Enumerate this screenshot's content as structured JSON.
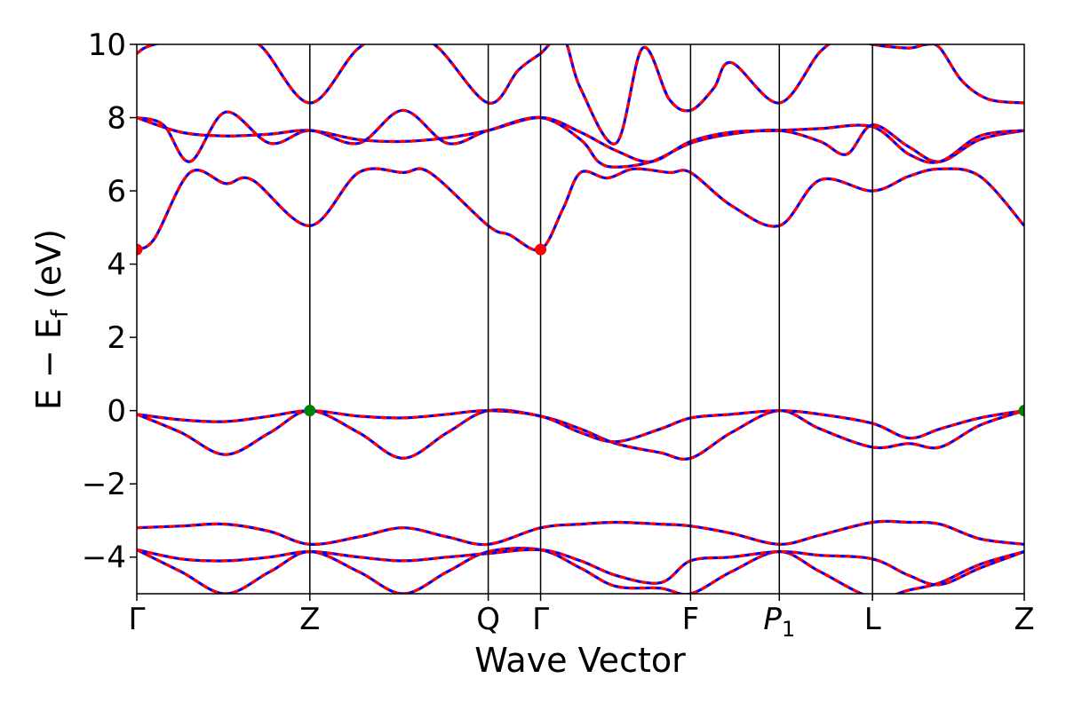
{
  "chart_data": {
    "type": "line",
    "title": "",
    "xlabel": "Wave Vector",
    "ylabel": "E − E",
    "ylabel_subscript": "f",
    "ylabel_unit": " (eV)",
    "ylim": [
      -5,
      10
    ],
    "y_ticks": [
      -4,
      -2,
      0,
      2,
      4,
      6,
      8,
      10
    ],
    "y_tick_labels": [
      "−4",
      "−2",
      "0",
      "2",
      "4",
      "6",
      "8",
      "10"
    ],
    "x_range": [
      0,
      1
    ],
    "high_symmetry_points": [
      {
        "label": "Γ",
        "x": 0.0
      },
      {
        "label": "Z",
        "x": 0.195
      },
      {
        "label": "Q",
        "x": 0.396
      },
      {
        "label": "Γ",
        "x": 0.455
      },
      {
        "label": "F",
        "x": 0.624
      },
      {
        "label": "P",
        "label_sub": "1",
        "x": 0.724
      },
      {
        "label": "L",
        "x": 0.829
      },
      {
        "label": "Z",
        "x": 1.0
      }
    ],
    "series": [
      {
        "color": "#ff0000",
        "style": "solid"
      },
      {
        "color": "#0000ff",
        "style": "dashed"
      }
    ],
    "bands": [
      [
        [
          0,
          -3.8
        ],
        [
          0.05,
          -4.4
        ],
        [
          0.1,
          -5.0
        ],
        [
          0.15,
          -4.4
        ],
        [
          0.195,
          -3.85
        ],
        [
          0.25,
          -4.4
        ],
        [
          0.3,
          -5.0
        ],
        [
          0.35,
          -4.4
        ],
        [
          0.396,
          -3.85
        ],
        [
          0.455,
          -3.8
        ],
        [
          0.5,
          -4.3
        ],
        [
          0.54,
          -4.8
        ],
        [
          0.59,
          -4.85
        ],
        [
          0.624,
          -5.0
        ],
        [
          0.67,
          -4.4
        ],
        [
          0.724,
          -3.85
        ],
        [
          0.77,
          -4.4
        ],
        [
          0.829,
          -5.1
        ],
        [
          0.87,
          -4.9
        ],
        [
          0.905,
          -4.7
        ],
        [
          0.95,
          -4.2
        ],
        [
          1.0,
          -3.85
        ]
      ],
      [
        [
          0,
          -3.8
        ],
        [
          0.05,
          -4.05
        ],
        [
          0.1,
          -4.1
        ],
        [
          0.15,
          -4.0
        ],
        [
          0.195,
          -3.85
        ],
        [
          0.25,
          -4.0
        ],
        [
          0.3,
          -4.1
        ],
        [
          0.35,
          -4.0
        ],
        [
          0.396,
          -3.9
        ],
        [
          0.455,
          -3.8
        ],
        [
          0.5,
          -4.1
        ],
        [
          0.54,
          -4.5
        ],
        [
          0.59,
          -4.7
        ],
        [
          0.624,
          -4.1
        ],
        [
          0.67,
          -4.0
        ],
        [
          0.724,
          -3.85
        ],
        [
          0.77,
          -3.95
        ],
        [
          0.829,
          -4.05
        ],
        [
          0.87,
          -4.5
        ],
        [
          0.905,
          -4.75
        ],
        [
          0.95,
          -4.3
        ],
        [
          1.0,
          -3.85
        ]
      ],
      [
        [
          0,
          -3.2
        ],
        [
          0.05,
          -3.15
        ],
        [
          0.1,
          -3.1
        ],
        [
          0.15,
          -3.3
        ],
        [
          0.195,
          -3.65
        ],
        [
          0.25,
          -3.45
        ],
        [
          0.3,
          -3.2
        ],
        [
          0.35,
          -3.45
        ],
        [
          0.396,
          -3.65
        ],
        [
          0.455,
          -3.2
        ],
        [
          0.5,
          -3.1
        ],
        [
          0.54,
          -3.05
        ],
        [
          0.59,
          -3.1
        ],
        [
          0.624,
          -3.15
        ],
        [
          0.67,
          -3.35
        ],
        [
          0.724,
          -3.65
        ],
        [
          0.77,
          -3.4
        ],
        [
          0.829,
          -3.05
        ],
        [
          0.87,
          -3.05
        ],
        [
          0.905,
          -3.1
        ],
        [
          0.95,
          -3.5
        ],
        [
          1.0,
          -3.65
        ]
      ],
      [
        [
          0,
          -0.1
        ],
        [
          0.05,
          -0.6
        ],
        [
          0.1,
          -1.2
        ],
        [
          0.15,
          -0.6
        ],
        [
          0.195,
          0.0
        ],
        [
          0.25,
          -0.6
        ],
        [
          0.3,
          -1.3
        ],
        [
          0.35,
          -0.6
        ],
        [
          0.396,
          0.0
        ],
        [
          0.455,
          -0.15
        ],
        [
          0.5,
          -0.5
        ],
        [
          0.54,
          -0.9
        ],
        [
          0.59,
          -1.15
        ],
        [
          0.624,
          -1.3
        ],
        [
          0.67,
          -0.6
        ],
        [
          0.724,
          0.0
        ],
        [
          0.77,
          -0.5
        ],
        [
          0.829,
          -1.0
        ],
        [
          0.87,
          -0.9
        ],
        [
          0.905,
          -1.0
        ],
        [
          0.95,
          -0.4
        ],
        [
          1.0,
          0.0
        ]
      ],
      [
        [
          0,
          -0.1
        ],
        [
          0.05,
          -0.25
        ],
        [
          0.1,
          -0.3
        ],
        [
          0.15,
          -0.15
        ],
        [
          0.195,
          0.0
        ],
        [
          0.25,
          -0.15
        ],
        [
          0.3,
          -0.2
        ],
        [
          0.35,
          -0.1
        ],
        [
          0.396,
          0.0
        ],
        [
          0.455,
          -0.15
        ],
        [
          0.5,
          -0.6
        ],
        [
          0.54,
          -0.85
        ],
        [
          0.59,
          -0.5
        ],
        [
          0.624,
          -0.2
        ],
        [
          0.67,
          -0.1
        ],
        [
          0.724,
          0.0
        ],
        [
          0.77,
          -0.1
        ],
        [
          0.829,
          -0.35
        ],
        [
          0.87,
          -0.75
        ],
        [
          0.905,
          -0.5
        ],
        [
          0.95,
          -0.2
        ],
        [
          1.0,
          0.0
        ]
      ],
      [
        [
          0,
          4.4
        ],
        [
          0.02,
          4.7
        ],
        [
          0.06,
          6.5
        ],
        [
          0.1,
          6.2
        ],
        [
          0.13,
          6.3
        ],
        [
          0.195,
          5.05
        ],
        [
          0.25,
          6.5
        ],
        [
          0.3,
          6.5
        ],
        [
          0.33,
          6.5
        ],
        [
          0.396,
          5.05
        ],
        [
          0.42,
          4.8
        ],
        [
          0.455,
          4.4
        ],
        [
          0.48,
          5.5
        ],
        [
          0.5,
          6.5
        ],
        [
          0.53,
          6.35
        ],
        [
          0.56,
          6.6
        ],
        [
          0.6,
          6.5
        ],
        [
          0.624,
          6.5
        ],
        [
          0.67,
          5.6
        ],
        [
          0.724,
          5.05
        ],
        [
          0.77,
          6.3
        ],
        [
          0.829,
          6.0
        ],
        [
          0.87,
          6.4
        ],
        [
          0.905,
          6.6
        ],
        [
          0.95,
          6.4
        ],
        [
          1.0,
          5.05
        ]
      ],
      [
        [
          0,
          8.0
        ],
        [
          0.03,
          7.8
        ],
        [
          0.06,
          6.8
        ],
        [
          0.1,
          8.15
        ],
        [
          0.15,
          7.3
        ],
        [
          0.195,
          7.65
        ],
        [
          0.25,
          7.3
        ],
        [
          0.3,
          8.2
        ],
        [
          0.35,
          7.3
        ],
        [
          0.396,
          7.65
        ],
        [
          0.455,
          8.0
        ],
        [
          0.5,
          7.4
        ],
        [
          0.52,
          6.8
        ],
        [
          0.54,
          6.65
        ],
        [
          0.58,
          6.8
        ],
        [
          0.624,
          7.3
        ],
        [
          0.67,
          7.55
        ],
        [
          0.724,
          7.65
        ],
        [
          0.77,
          7.35
        ],
        [
          0.8,
          7.0
        ],
        [
          0.829,
          7.8
        ],
        [
          0.87,
          7.2
        ],
        [
          0.905,
          6.8
        ],
        [
          0.95,
          7.4
        ],
        [
          1.0,
          7.65
        ]
      ],
      [
        [
          0,
          8.0
        ],
        [
          0.05,
          7.6
        ],
        [
          0.1,
          7.5
        ],
        [
          0.15,
          7.55
        ],
        [
          0.195,
          7.65
        ],
        [
          0.25,
          7.4
        ],
        [
          0.3,
          7.35
        ],
        [
          0.35,
          7.45
        ],
        [
          0.396,
          7.65
        ],
        [
          0.455,
          8.0
        ],
        [
          0.5,
          7.6
        ],
        [
          0.54,
          7.1
        ],
        [
          0.58,
          6.8
        ],
        [
          0.624,
          7.35
        ],
        [
          0.67,
          7.6
        ],
        [
          0.724,
          7.65
        ],
        [
          0.77,
          7.7
        ],
        [
          0.829,
          7.75
        ],
        [
          0.87,
          7.0
        ],
        [
          0.905,
          6.8
        ],
        [
          0.95,
          7.5
        ],
        [
          1.0,
          7.65
        ]
      ],
      [
        [
          0,
          9.75
        ],
        [
          0.02,
          10.0
        ],
        [
          0.1,
          10.4
        ],
        [
          0.14,
          9.95
        ],
        [
          0.195,
          8.4
        ],
        [
          0.25,
          9.9
        ],
        [
          0.3,
          10.4
        ],
        [
          0.34,
          9.9
        ],
        [
          0.396,
          8.4
        ],
        [
          0.43,
          9.3
        ],
        [
          0.455,
          9.75
        ],
        [
          0.48,
          10.2
        ],
        [
          0.5,
          8.8
        ],
        [
          0.54,
          7.3
        ],
        [
          0.57,
          9.9
        ],
        [
          0.6,
          8.5
        ],
        [
          0.624,
          8.2
        ],
        [
          0.65,
          8.8
        ],
        [
          0.67,
          9.5
        ],
        [
          0.724,
          8.4
        ],
        [
          0.77,
          9.8
        ],
        [
          0.8,
          10.2
        ],
        [
          0.829,
          10.0
        ],
        [
          0.87,
          9.9
        ],
        [
          0.89,
          10.0
        ],
        [
          0.905,
          9.9
        ],
        [
          0.93,
          9.0
        ],
        [
          0.96,
          8.5
        ],
        [
          1.0,
          8.4
        ]
      ]
    ],
    "markers": [
      {
        "x": 0.0,
        "y": 4.4,
        "color": "#ff0000"
      },
      {
        "x": 0.455,
        "y": 4.4,
        "color": "#ff0000"
      },
      {
        "x": 0.195,
        "y": 0.0,
        "color": "#008000"
      },
      {
        "x": 1.0,
        "y": 0.0,
        "color": "#008000"
      }
    ]
  }
}
